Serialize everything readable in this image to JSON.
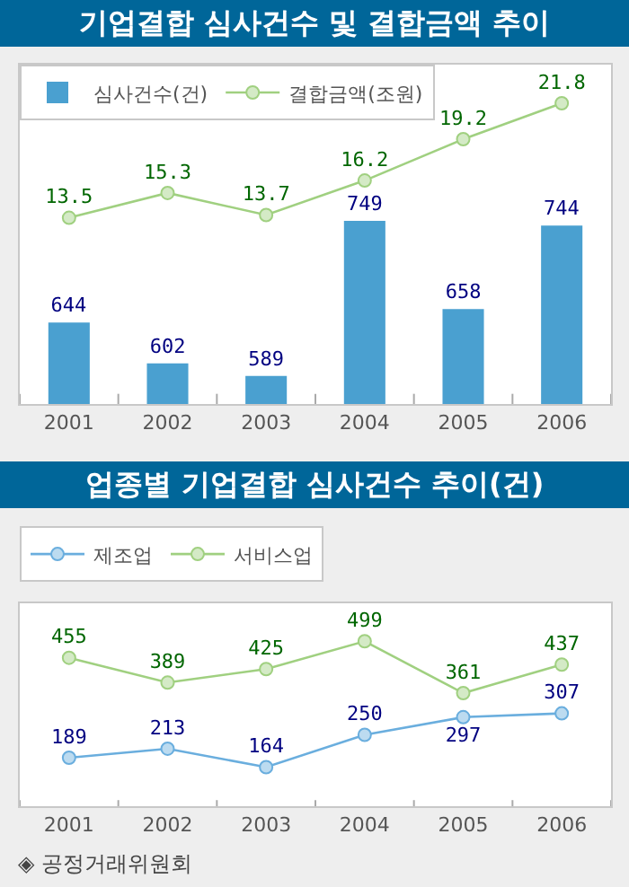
{
  "chart_data": [
    {
      "type": "bar",
      "title": "기업결합 심사건수 및 결합금액 추이",
      "categories": [
        "2001",
        "2002",
        "2003",
        "2004",
        "2005",
        "2006"
      ],
      "series": [
        {
          "name": "심사건수(건)",
          "type": "bar",
          "color": "#4aa0d0",
          "values": [
            644,
            602,
            589,
            749,
            658,
            744
          ]
        },
        {
          "name": "결합금액(조원)",
          "type": "line",
          "axis": "y2",
          "color": "#a0d080",
          "values": [
            13.5,
            15.3,
            13.7,
            16.2,
            19.2,
            21.8
          ]
        }
      ],
      "ylim": [
        560,
        910
      ],
      "y2lim": [
        0,
        24.6
      ],
      "data_labels": true,
      "marker": "circle",
      "legend": "top left",
      "grid": false,
      "tick_labels": "x"
    },
    {
      "type": "line",
      "title": "업종별 기업결합 심사건수 추이(건)",
      "categories": [
        "2001",
        "2002",
        "2003",
        "2004",
        "2005",
        "2006"
      ],
      "series": [
        {
          "name": "제조업",
          "color": "#6aaede",
          "values": [
            189,
            213,
            164,
            250,
            297,
            307
          ]
        },
        {
          "name": "서비스업",
          "color": "#a0d080",
          "values": [
            455,
            389,
            425,
            499,
            361,
            437
          ]
        }
      ],
      "ylim": [
        60,
        600
      ],
      "data_labels": true,
      "marker": "circle",
      "legend": "top left",
      "grid": false,
      "tick_labels": "x",
      "annotations": [
        "◈ 공정거래위원회"
      ]
    }
  ]
}
